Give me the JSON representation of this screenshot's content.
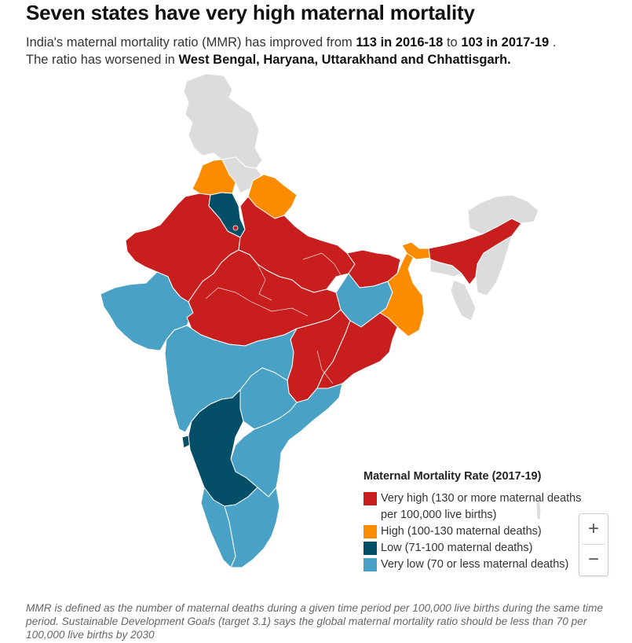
{
  "header": {
    "title": "Seven states have very high maternal mortality",
    "subtitle_line1_a": "India's maternal mortality ratio (MMR) has improved from ",
    "subtitle_bold1": "113 in 2016-18",
    "subtitle_line1_b": " to ",
    "subtitle_bold2": "103 in 2017-19",
    "subtitle_line1_c": " .",
    "subtitle_line2_a": "The ratio has worsened in ",
    "subtitle_bold3": "West Bengal, Haryana, Uttarakhand and Chhattisgarh."
  },
  "colors": {
    "very_high": "#c81e1e",
    "high": "#fb8c00",
    "low": "#054e68",
    "very_low": "#4aa1c6",
    "no_data": "#dcdcdc",
    "border": "#ffffff"
  },
  "legend": {
    "title": "Maternal Mortality Rate (2017-19)",
    "items": [
      {
        "label": "Very high (130 or more maternal deaths per 100,000 live births)",
        "color": "#c81e1e"
      },
      {
        "label": "High (100-130 maternal deaths)",
        "color": "#fb8c00"
      },
      {
        "label": "Low (71-100 maternal deaths)",
        "color": "#054e68"
      },
      {
        "label": "Very low (70 or less maternal deaths)",
        "color": "#4aa1c6"
      }
    ]
  },
  "zoom": {
    "in": "+",
    "out": "−"
  },
  "notes": "MMR is defined as the number of maternal deaths during a given time period per 100,000 live births during the same time period. Sustainable Development Goals (target 3.1) says the global maternal mortality ratio should be less than 70 per 100,000 live births by 2030"
}
